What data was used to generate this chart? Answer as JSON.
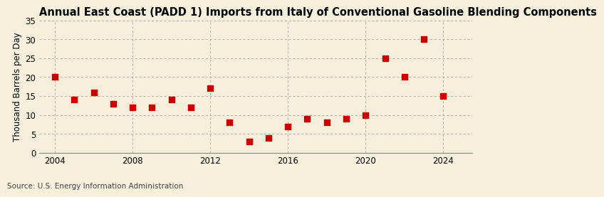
{
  "title": "Annual East Coast (PADD 1) Imports from Italy of Conventional Gasoline Blending Components",
  "ylabel": "Thousand Barrels per Day",
  "source": "Source: U.S. Energy Information Administration",
  "years": [
    2004,
    2005,
    2006,
    2007,
    2008,
    2009,
    2010,
    2011,
    2012,
    2013,
    2014,
    2015,
    2016,
    2017,
    2018,
    2019,
    2020,
    2021,
    2022,
    2023,
    2024
  ],
  "values": [
    20,
    14,
    16,
    13,
    12,
    12,
    14,
    12,
    17,
    8,
    3,
    4,
    7,
    9,
    8,
    9,
    10,
    25,
    20,
    30,
    15
  ],
  "marker_color": "#cc0000",
  "marker_size": 28,
  "bg_color": "#f5efdc",
  "grid_color": "#b0a898",
  "xlim": [
    2003.2,
    2025.5
  ],
  "ylim": [
    0,
    35
  ],
  "yticks": [
    0,
    5,
    10,
    15,
    20,
    25,
    30,
    35
  ],
  "xticks": [
    2004,
    2008,
    2012,
    2016,
    2020,
    2024
  ],
  "title_fontsize": 10.5,
  "label_fontsize": 8.5,
  "tick_fontsize": 8.5,
  "source_fontsize": 7.5
}
